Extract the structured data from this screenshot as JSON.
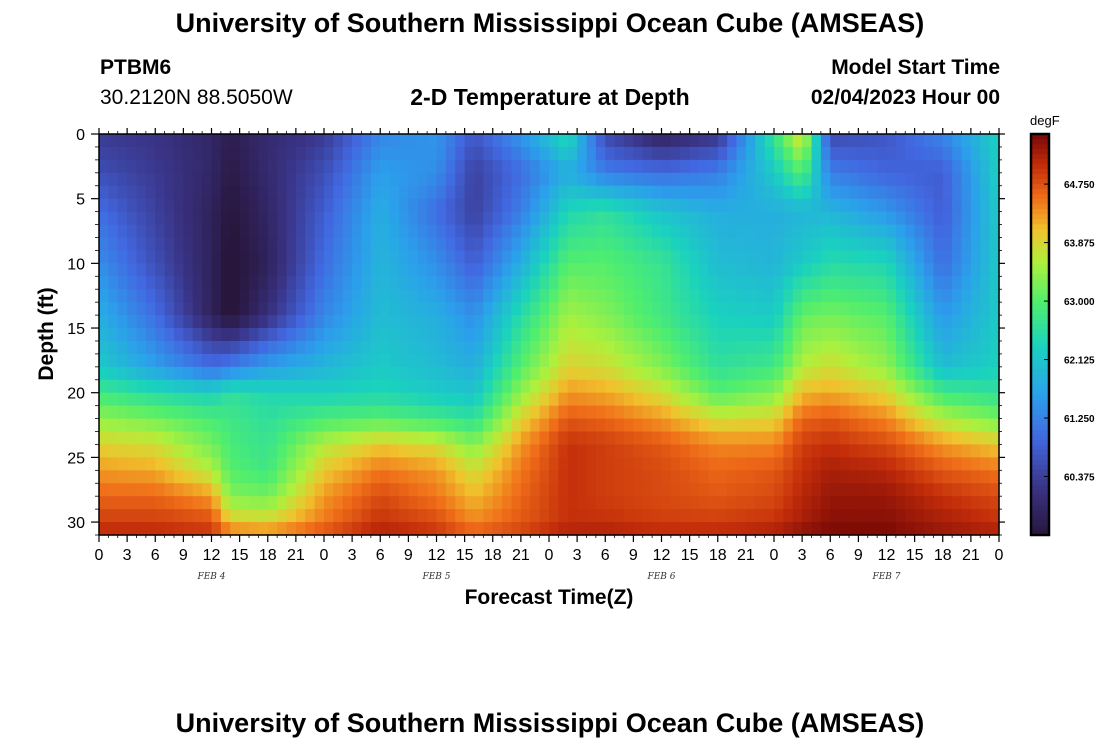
{
  "header": {
    "title": "University of Southern Mississippi Ocean Cube (AMSEAS)",
    "station_id": "PTBM6",
    "coords": "30.2120N  88.5050W",
    "plot_title": "2-D Temperature at Depth",
    "model_label": "Model Start Time",
    "model_time": "02/04/2023 Hour 00"
  },
  "footer": {
    "title": "University of Southern Mississippi Ocean Cube (AMSEAS)"
  },
  "chart_data": {
    "type": "heatmap",
    "title": "2-D Temperature at Depth",
    "xlabel": "Forecast Time(Z)",
    "ylabel": "Depth (ft)",
    "x_ticks": [
      "0",
      "3",
      "6",
      "9",
      "12",
      "15",
      "18",
      "21",
      "0",
      "3",
      "6",
      "9",
      "12",
      "15",
      "18",
      "21",
      "0",
      "3",
      "6",
      "9",
      "12",
      "15",
      "18",
      "21",
      "0",
      "3",
      "6",
      "9",
      "12",
      "15",
      "18",
      "21",
      "0"
    ],
    "date_labels": [
      {
        "label": "FEB 4",
        "hour": 12
      },
      {
        "label": "FEB 5",
        "hour": 36
      },
      {
        "label": "FEB 6",
        "hour": 60
      },
      {
        "label": "FEB 7",
        "hour": 84
      }
    ],
    "xlim": [
      0,
      96
    ],
    "ylim": [
      0,
      31
    ],
    "y_ticks": [
      0,
      5,
      10,
      15,
      20,
      25,
      30
    ],
    "colorbar": {
      "unit": "degF",
      "min": 59.5,
      "max": 65.5,
      "ticks": [
        "64.750",
        "63.875",
        "63.000",
        "62.125",
        "61.250",
        "60.375"
      ]
    },
    "depths_ft": [
      0,
      3,
      6,
      10,
      14,
      18,
      20,
      22,
      24,
      26,
      28,
      30,
      31
    ],
    "hours": [
      0,
      6,
      12,
      14,
      18,
      24,
      30,
      36,
      40,
      45,
      50,
      54,
      60,
      66,
      72,
      75,
      78,
      84,
      90,
      96
    ],
    "values": [
      [
        60.3,
        60.2,
        59.9,
        59.7,
        60.0,
        60.3,
        61.3,
        61.5,
        60.7,
        61.5,
        62.5,
        60.5,
        59.8,
        60.2,
        62.7,
        64.0,
        60.5,
        60.7,
        61.3,
        62.3
      ],
      [
        60.6,
        60.3,
        59.9,
        59.6,
        60.0,
        60.6,
        61.6,
        61.4,
        60.4,
        61.0,
        61.8,
        61.2,
        61.0,
        61.2,
        62.2,
        63.0,
        61.2,
        60.9,
        60.8,
        62.3
      ],
      [
        61.0,
        60.4,
        59.8,
        59.5,
        59.9,
        60.8,
        61.8,
        61.0,
        60.4,
        61.2,
        62.4,
        62.6,
        62.1,
        61.8,
        61.8,
        61.9,
        61.9,
        61.5,
        60.8,
        62.2
      ],
      [
        61.4,
        60.6,
        59.8,
        59.4,
        59.8,
        61.0,
        61.9,
        61.4,
        60.8,
        61.8,
        63.0,
        63.0,
        62.7,
        62.0,
        61.9,
        62.2,
        62.5,
        62.4,
        61.0,
        62.2
      ],
      [
        61.8,
        61.0,
        59.8,
        59.4,
        60.1,
        61.3,
        62.0,
        61.8,
        61.4,
        62.5,
        63.5,
        63.3,
        62.8,
        62.3,
        62.2,
        63.1,
        63.2,
        63.0,
        61.5,
        62.2
      ],
      [
        62.2,
        61.6,
        61.0,
        61.2,
        61.6,
        61.9,
        62.2,
        62.0,
        61.8,
        63.0,
        63.9,
        63.8,
        63.3,
        62.6,
        62.8,
        63.6,
        63.8,
        63.4,
        62.0,
        62.3
      ],
      [
        62.8,
        62.5,
        62.3,
        62.6,
        62.4,
        62.3,
        62.4,
        62.2,
        62.1,
        63.4,
        64.3,
        64.2,
        63.8,
        63.0,
        63.3,
        64.1,
        64.2,
        63.9,
        62.8,
        62.6
      ],
      [
        63.4,
        63.2,
        62.9,
        62.8,
        62.6,
        62.9,
        63.0,
        62.8,
        62.6,
        63.9,
        64.7,
        64.6,
        64.3,
        63.8,
        63.9,
        64.6,
        64.7,
        64.4,
        63.6,
        63.2
      ],
      [
        63.9,
        63.8,
        63.2,
        62.9,
        62.7,
        63.6,
        64.0,
        63.8,
        63.3,
        64.3,
        65.0,
        64.9,
        64.7,
        64.4,
        64.4,
        64.9,
        65.0,
        64.8,
        64.3,
        64.0
      ],
      [
        64.3,
        64.2,
        63.6,
        63.0,
        62.8,
        64.0,
        64.5,
        64.3,
        63.8,
        64.5,
        65.0,
        64.9,
        64.8,
        64.6,
        64.7,
        65.0,
        65.2,
        65.1,
        64.7,
        64.5
      ],
      [
        64.6,
        64.6,
        64.3,
        63.3,
        63.2,
        64.3,
        64.8,
        64.5,
        64.1,
        64.6,
        65.0,
        64.9,
        64.8,
        64.7,
        64.8,
        65.1,
        65.3,
        65.3,
        65.0,
        64.8
      ],
      [
        64.9,
        64.9,
        64.8,
        64.0,
        63.9,
        64.5,
        65.0,
        64.8,
        64.4,
        64.7,
        65.0,
        65.0,
        64.9,
        64.9,
        65.0,
        65.2,
        65.4,
        65.4,
        65.2,
        65.0
      ],
      [
        65.1,
        65.1,
        65.0,
        64.6,
        64.5,
        64.8,
        65.2,
        65.0,
        64.7,
        64.9,
        65.2,
        65.2,
        65.1,
        65.1,
        65.2,
        65.4,
        65.5,
        65.5,
        65.3,
        65.2
      ]
    ]
  }
}
